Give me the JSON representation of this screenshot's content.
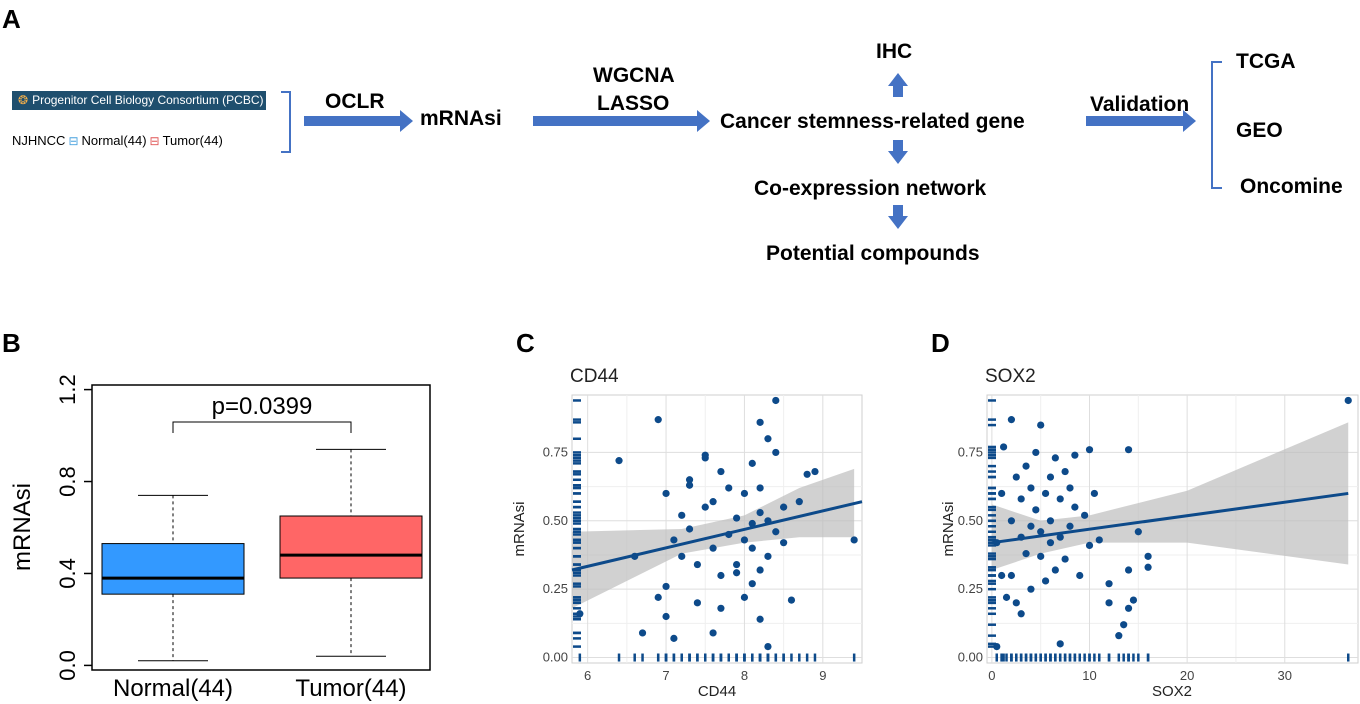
{
  "flow": {
    "panel_label": "A",
    "pcbc_label": "Progenitor Cell Biology Consortium (PCBC)",
    "njh_prefix": "NJHNCC",
    "normal_label": "Normal(44)",
    "tumor_label": "Tumor(44)",
    "ocl": "OCLR",
    "mrnasi": "mRNAsi",
    "wgcna": "WGCNA",
    "lasso": "LASSO",
    "ihc": "IHC",
    "gene": "Cancer stemness-related gene",
    "coexp": "Co-expression network",
    "compounds": "Potential compounds",
    "validation": "Validation",
    "tcga": "TCGA",
    "geo": "GEO",
    "oncomine": "Oncomine",
    "arrow_color": "#4472c4"
  },
  "chart_data": [
    {
      "panel": "B",
      "type": "box",
      "ylabel": "mRNAsi",
      "categories": [
        "Normal(44)",
        "Tumor(44)"
      ],
      "yticks": [
        "0.0",
        "0.4",
        "0.8",
        "1.2"
      ],
      "ylim": [
        -0.02,
        1.22
      ],
      "annotation": "p=0.0399",
      "boxes": [
        {
          "name": "Normal(44)",
          "min": 0.02,
          "q1": 0.31,
          "median": 0.38,
          "q3": 0.53,
          "max": 0.74,
          "color": "#3399ff"
        },
        {
          "name": "Tumor(44)",
          "min": 0.04,
          "q1": 0.38,
          "median": 0.48,
          "q3": 0.65,
          "max": 0.94,
          "color": "#ff6666"
        }
      ]
    },
    {
      "panel": "C",
      "type": "scatter",
      "title": "CD44",
      "xlabel": "CD44",
      "ylabel": "mRNAsi",
      "xlim": [
        5.8,
        9.5
      ],
      "ylim": [
        -0.02,
        0.96
      ],
      "xticks": [
        "6",
        "7",
        "8",
        "9"
      ],
      "yticks": [
        "0.00",
        "0.25",
        "0.50",
        "0.75"
      ],
      "point_color": "#0d4a8a",
      "fit": {
        "x": [
          5.8,
          9.5
        ],
        "y": [
          0.32,
          0.57
        ]
      },
      "band_upper": [
        [
          5.8,
          0.46
        ],
        [
          7.2,
          0.47
        ],
        [
          8.0,
          0.52
        ],
        [
          8.7,
          0.62
        ],
        [
          9.4,
          0.69
        ]
      ],
      "band_lower": [
        [
          5.8,
          0.18
        ],
        [
          7.2,
          0.38
        ],
        [
          8.0,
          0.42
        ],
        [
          8.7,
          0.44
        ],
        [
          9.4,
          0.44
        ]
      ],
      "points": [
        [
          5.9,
          0.16
        ],
        [
          6.4,
          0.72
        ],
        [
          6.6,
          0.37
        ],
        [
          6.7,
          0.09
        ],
        [
          6.9,
          0.22
        ],
        [
          7.0,
          0.6
        ],
        [
          7.1,
          0.43
        ],
        [
          7.0,
          0.26
        ],
        [
          7.0,
          0.15
        ],
        [
          7.1,
          0.07
        ],
        [
          7.2,
          0.37
        ],
        [
          7.3,
          0.65
        ],
        [
          7.3,
          0.47
        ],
        [
          7.4,
          0.34
        ],
        [
          7.4,
          0.2
        ],
        [
          7.5,
          0.73
        ],
        [
          7.5,
          0.55
        ],
        [
          7.6,
          0.57
        ],
        [
          7.6,
          0.4
        ],
        [
          7.7,
          0.68
        ],
        [
          7.7,
          0.3
        ],
        [
          7.7,
          0.18
        ],
        [
          7.8,
          0.62
        ],
        [
          7.8,
          0.45
        ],
        [
          7.9,
          0.51
        ],
        [
          7.9,
          0.34
        ],
        [
          8.0,
          0.6
        ],
        [
          8.0,
          0.43
        ],
        [
          8.0,
          0.22
        ],
        [
          8.1,
          0.71
        ],
        [
          8.1,
          0.49
        ],
        [
          8.1,
          0.4
        ],
        [
          8.2,
          0.62
        ],
        [
          8.2,
          0.53
        ],
        [
          8.2,
          0.32
        ],
        [
          8.3,
          0.8
        ],
        [
          8.3,
          0.5
        ],
        [
          8.3,
          0.37
        ],
        [
          8.4,
          0.94
        ],
        [
          8.4,
          0.75
        ],
        [
          8.4,
          0.46
        ],
        [
          8.5,
          0.55
        ],
        [
          8.5,
          0.42
        ],
        [
          8.6,
          0.21
        ],
        [
          8.7,
          0.57
        ],
        [
          8.8,
          0.67
        ],
        [
          8.9,
          0.68
        ],
        [
          9.4,
          0.43
        ],
        [
          6.9,
          0.87
        ],
        [
          7.5,
          0.74
        ],
        [
          8.2,
          0.86
        ],
        [
          7.2,
          0.52
        ],
        [
          7.9,
          0.31
        ],
        [
          8.1,
          0.27
        ],
        [
          8.3,
          0.04
        ],
        [
          8.2,
          0.14
        ],
        [
          7.6,
          0.09
        ],
        [
          7.3,
          0.63
        ]
      ]
    },
    {
      "panel": "D",
      "type": "scatter",
      "title": "SOX2",
      "xlabel": "SOX2",
      "ylabel": "mRNAsi",
      "xlim": [
        -0.5,
        37.5
      ],
      "ylim": [
        -0.02,
        0.96
      ],
      "xticks": [
        "0",
        "10",
        "20",
        "30"
      ],
      "yticks": [
        "0.00",
        "0.25",
        "0.50",
        "0.75"
      ],
      "point_color": "#0d4a8a",
      "fit": {
        "x": [
          0,
          36.5
        ],
        "y": [
          0.42,
          0.6
        ]
      },
      "band_upper": [
        [
          0,
          0.56
        ],
        [
          5,
          0.5
        ],
        [
          10,
          0.52
        ],
        [
          20,
          0.61
        ],
        [
          36.5,
          0.86
        ]
      ],
      "band_lower": [
        [
          0,
          0.32
        ],
        [
          5,
          0.38
        ],
        [
          10,
          0.42
        ],
        [
          20,
          0.42
        ],
        [
          36.5,
          0.34
        ]
      ],
      "points": [
        [
          0.5,
          0.42
        ],
        [
          1,
          0.6
        ],
        [
          1.2,
          0.77
        ],
        [
          1.5,
          0.22
        ],
        [
          2,
          0.87
        ],
        [
          2,
          0.5
        ],
        [
          2,
          0.3
        ],
        [
          2.5,
          0.66
        ],
        [
          2.5,
          0.2
        ],
        [
          3,
          0.58
        ],
        [
          3,
          0.44
        ],
        [
          3,
          0.16
        ],
        [
          3.5,
          0.7
        ],
        [
          3.5,
          0.38
        ],
        [
          4,
          0.62
        ],
        [
          4,
          0.48
        ],
        [
          4,
          0.25
        ],
        [
          4.5,
          0.75
        ],
        [
          4.5,
          0.54
        ],
        [
          5,
          0.85
        ],
        [
          5,
          0.46
        ],
        [
          5,
          0.37
        ],
        [
          5.5,
          0.6
        ],
        [
          5.5,
          0.28
        ],
        [
          6,
          0.66
        ],
        [
          6,
          0.5
        ],
        [
          6,
          0.42
        ],
        [
          6.5,
          0.73
        ],
        [
          6.5,
          0.32
        ],
        [
          7,
          0.58
        ],
        [
          7,
          0.44
        ],
        [
          7.5,
          0.68
        ],
        [
          7.5,
          0.36
        ],
        [
          8,
          0.62
        ],
        [
          8,
          0.48
        ],
        [
          8.5,
          0.74
        ],
        [
          8.5,
          0.55
        ],
        [
          9,
          0.3
        ],
        [
          9.5,
          0.52
        ],
        [
          10,
          0.76
        ],
        [
          10,
          0.41
        ],
        [
          10.5,
          0.6
        ],
        [
          11,
          0.43
        ],
        [
          12,
          0.27
        ],
        [
          12,
          0.2
        ],
        [
          13,
          0.08
        ],
        [
          13.5,
          0.12
        ],
        [
          14,
          0.32
        ],
        [
          14,
          0.18
        ],
        [
          14.5,
          0.21
        ],
        [
          15,
          0.46
        ],
        [
          16,
          0.33
        ],
        [
          16,
          0.37
        ],
        [
          36.5,
          0.94
        ],
        [
          1,
          0.3
        ],
        [
          0.5,
          0.04
        ],
        [
          7,
          0.05
        ],
        [
          14,
          0.76
        ]
      ]
    }
  ]
}
